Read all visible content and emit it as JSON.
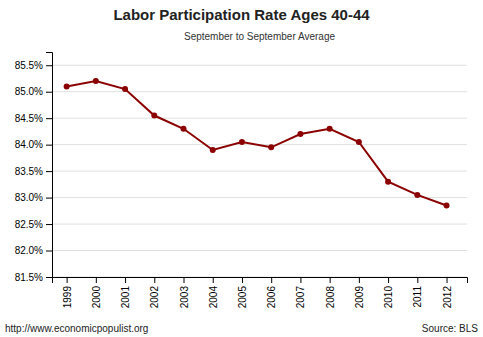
{
  "chart_data": {
    "type": "line",
    "title": "Labor Participation Rate Ages 40-44",
    "subtitle": "September to September Average",
    "x": [
      1999,
      2000,
      2001,
      2002,
      2003,
      2004,
      2005,
      2006,
      2007,
      2008,
      2009,
      2010,
      2011,
      2012
    ],
    "values": [
      85.1,
      85.2,
      85.05,
      84.55,
      84.3,
      83.9,
      84.05,
      83.95,
      84.2,
      84.3,
      84.05,
      83.3,
      83.05,
      82.85
    ],
    "color": "#8B0000",
    "marker": "circle",
    "xlim": [
      1998.5,
      2012.7
    ],
    "xticks": [
      1999,
      2000,
      2001,
      2002,
      2003,
      2004,
      2005,
      2006,
      2007,
      2008,
      2009,
      2010,
      2011,
      2012
    ],
    "ylim": [
      81.5,
      85.75
    ],
    "yticks": [
      {
        "value": 81.5,
        "label": "81.5%"
      },
      {
        "value": 82.0,
        "label": "82.0%"
      },
      {
        "value": 82.5,
        "label": "82.5%"
      },
      {
        "value": 83.0,
        "label": "83.0%"
      },
      {
        "value": 83.5,
        "label": "83.5%"
      },
      {
        "value": 84.0,
        "label": "84.0%"
      },
      {
        "value": 84.5,
        "label": "84.5%"
      },
      {
        "value": 85.0,
        "label": "85.0%"
      },
      {
        "value": 85.5,
        "label": "85.5%"
      }
    ],
    "grid": "y",
    "annotations": [
      "http://www.economicpopulist.org",
      "Source:  BLS"
    ]
  }
}
